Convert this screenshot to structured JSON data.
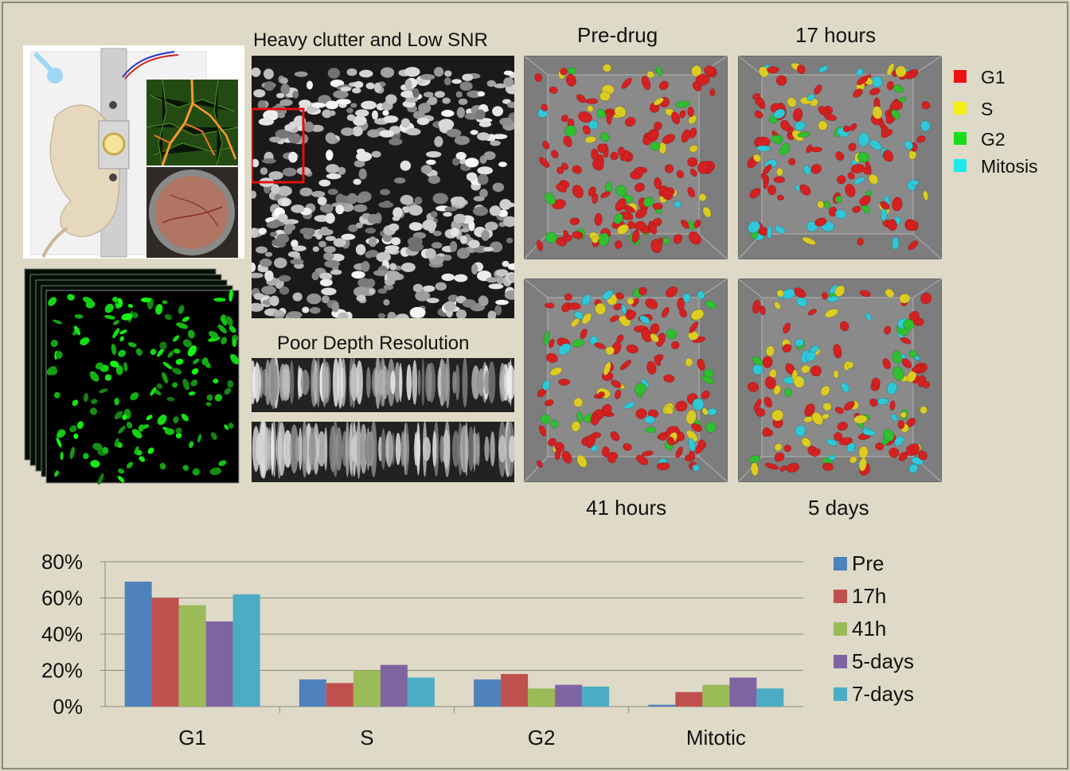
{
  "labels": {
    "clutter": "Heavy clutter and Low SNR",
    "depth": "Poor Depth Resolution",
    "predrug": "Pre-drug",
    "h17": "17 hours",
    "h41": "41 hours",
    "d5": "5 days"
  },
  "phase_legend": [
    {
      "label": "G1",
      "color": "#ee1111"
    },
    {
      "label": "S",
      "color": "#f4f011"
    },
    {
      "label": "G2",
      "color": "#18dd18"
    },
    {
      "label": "Mitosis",
      "color": "#1ee8ee"
    }
  ],
  "cell_colors": {
    "G1": "#d42020",
    "S": "#dccc22",
    "G2": "#2fbf2f",
    "Mitosis": "#2ec8d8"
  },
  "chart_data": {
    "type": "bar",
    "categories": [
      "G1",
      "S",
      "G2",
      "Mitotic"
    ],
    "series": [
      {
        "name": "Pre",
        "color": "#4f81bd",
        "values": [
          69,
          15,
          15,
          1
        ]
      },
      {
        "name": "17h",
        "color": "#c0504d",
        "values": [
          60,
          13,
          18,
          8
        ]
      },
      {
        "name": "41h",
        "color": "#9bbb59",
        "values": [
          56,
          20,
          10,
          12
        ]
      },
      {
        "name": "5-days",
        "color": "#8064a2",
        "values": [
          47,
          23,
          12,
          16
        ]
      },
      {
        "name": "7-days",
        "color": "#4bacc6",
        "values": [
          62,
          16,
          11,
          10
        ]
      }
    ],
    "ylim": [
      0,
      80
    ],
    "yticks": [
      "0%",
      "20%",
      "40%",
      "60%",
      "80%"
    ],
    "grid": true,
    "legend": "right"
  }
}
